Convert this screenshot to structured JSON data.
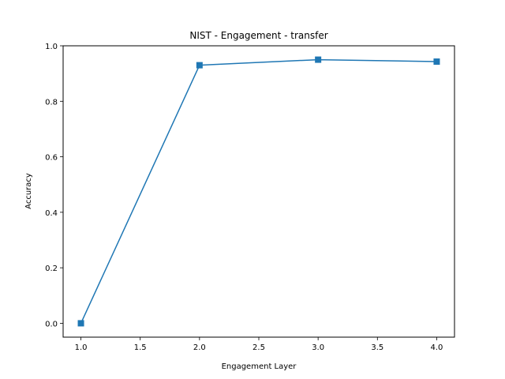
{
  "chart_data": {
    "type": "line",
    "title": "NIST - Engagement - transfer",
    "xlabel": "Engagement Layer",
    "ylabel": "Accuracy",
    "xlim": [
      0.85,
      4.15
    ],
    "ylim": [
      -0.05,
      1.0
    ],
    "xticks": [
      1.0,
      1.5,
      2.0,
      2.5,
      3.0,
      3.5,
      4.0
    ],
    "xtick_labels": [
      "1.0",
      "1.5",
      "2.0",
      "2.5",
      "3.0",
      "3.5",
      "4.0"
    ],
    "yticks": [
      0.0,
      0.2,
      0.4,
      0.6,
      0.8,
      1.0
    ],
    "ytick_labels": [
      "0.0",
      "0.2",
      "0.4",
      "0.6",
      "0.8",
      "1.0"
    ],
    "grid": false,
    "series": [
      {
        "marker": "square",
        "color": "#1f77b4",
        "x": [
          1.0,
          2.0,
          3.0,
          4.0
        ],
        "y": [
          0.0,
          0.93,
          0.95,
          0.943
        ]
      }
    ]
  }
}
